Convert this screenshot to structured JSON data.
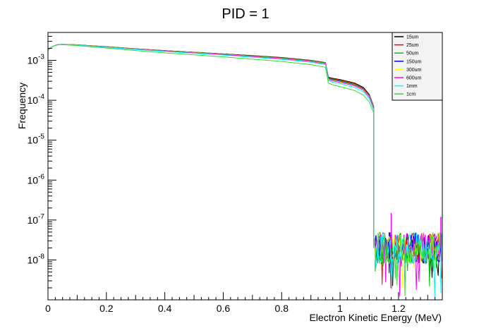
{
  "chart_data": {
    "type": "line",
    "title": "PID = 1",
    "xlabel": "Electron Kinetic Energy (MeV)",
    "ylabel": "Frequency",
    "xlim": [
      0,
      1.35
    ],
    "ylim": [
      1e-09,
      0.005
    ],
    "yscale": "log",
    "grid": false,
    "legend_position": "top-right",
    "x_ticks": [
      {
        "v": 0,
        "label": "0"
      },
      {
        "v": 0.2,
        "label": "0.2"
      },
      {
        "v": 0.4,
        "label": "0.4"
      },
      {
        "v": 0.6,
        "label": "0.6"
      },
      {
        "v": 0.8,
        "label": "0.8"
      },
      {
        "v": 1.0,
        "label": "1"
      },
      {
        "v": 1.2,
        "label": "1.2"
      }
    ],
    "y_ticks": [
      {
        "v": 1e-08,
        "base": "10",
        "exp": "-8"
      },
      {
        "v": 1e-07,
        "base": "10",
        "exp": "-7"
      },
      {
        "v": 1e-06,
        "base": "10",
        "exp": "-6"
      },
      {
        "v": 1e-05,
        "base": "10",
        "exp": "-5"
      },
      {
        "v": 0.0001,
        "base": "10",
        "exp": "-4"
      },
      {
        "v": 0.001,
        "base": "10",
        "exp": "-3"
      }
    ],
    "x": [
      0.0,
      0.01,
      0.02,
      0.03,
      0.04,
      0.05,
      0.07,
      0.1,
      0.15,
      0.2,
      0.3,
      0.4,
      0.5,
      0.6,
      0.7,
      0.8,
      0.9,
      0.95,
      0.96,
      0.97,
      1.0,
      1.05,
      1.08,
      1.1,
      1.115
    ],
    "series": [
      {
        "name": "15um",
        "color": "#000000",
        "values": [
          0.0018,
          0.0021,
          0.0023,
          0.00245,
          0.0025,
          0.00252,
          0.0025,
          0.00245,
          0.00232,
          0.0022,
          0.00195,
          0.00175,
          0.0016,
          0.00145,
          0.00132,
          0.00118,
          0.001,
          0.00088,
          0.00038,
          0.00036,
          0.00033,
          0.00027,
          0.00021,
          0.00014,
          7e-05
        ]
      },
      {
        "name": "25um",
        "color": "#ff0000",
        "values": [
          0.0018,
          0.0021,
          0.0023,
          0.00245,
          0.0025,
          0.00252,
          0.0025,
          0.00245,
          0.00232,
          0.0022,
          0.00195,
          0.00175,
          0.0016,
          0.00145,
          0.0013,
          0.00116,
          0.00099,
          0.00087,
          0.00037,
          0.00035,
          0.00032,
          0.00026,
          0.0002,
          0.000135,
          6.8e-05
        ]
      },
      {
        "name": "50um",
        "color": "#00cc00",
        "values": [
          0.0018,
          0.0021,
          0.0023,
          0.00245,
          0.0025,
          0.00252,
          0.0025,
          0.00245,
          0.00231,
          0.00219,
          0.00194,
          0.00174,
          0.00159,
          0.00144,
          0.00129,
          0.00115,
          0.00098,
          0.00086,
          0.00036,
          0.00034,
          0.00031,
          0.00025,
          0.000195,
          0.00013,
          6.6e-05
        ]
      },
      {
        "name": "150um",
        "color": "#0000ff",
        "values": [
          0.0018,
          0.0021,
          0.0023,
          0.00244,
          0.00249,
          0.0025,
          0.00248,
          0.00243,
          0.0023,
          0.00217,
          0.00192,
          0.00172,
          0.00157,
          0.00142,
          0.00127,
          0.00113,
          0.00096,
          0.00084,
          0.00035,
          0.00033,
          0.0003,
          0.00024,
          0.00019,
          0.000128,
          6.4e-05
        ]
      },
      {
        "name": "300um",
        "color": "#ffff00",
        "values": [
          0.0018,
          0.0021,
          0.0023,
          0.00244,
          0.00249,
          0.0025,
          0.00248,
          0.00242,
          0.00229,
          0.00216,
          0.00191,
          0.00171,
          0.00156,
          0.00141,
          0.00126,
          0.00112,
          0.00095,
          0.00083,
          0.00034,
          0.00032,
          0.00029,
          0.000235,
          0.000185,
          0.000125,
          6.3e-05
        ]
      },
      {
        "name": "600um",
        "color": "#ff00ff",
        "values": [
          0.0018,
          0.0021,
          0.0023,
          0.00243,
          0.00248,
          0.00249,
          0.00247,
          0.00241,
          0.00227,
          0.00214,
          0.00189,
          0.00169,
          0.00154,
          0.00139,
          0.00124,
          0.0011,
          0.00093,
          0.00081,
          0.00033,
          0.00031,
          0.00028,
          0.00023,
          0.00018,
          0.00012,
          6.1e-05
        ]
      },
      {
        "name": "1mm",
        "color": "#00ffff",
        "values": [
          0.0018,
          0.0021,
          0.0023,
          0.00243,
          0.00248,
          0.00249,
          0.00246,
          0.0024,
          0.00226,
          0.00212,
          0.00186,
          0.00166,
          0.0015,
          0.00135,
          0.0012,
          0.00106,
          0.0009,
          0.00078,
          0.00031,
          0.00029,
          0.00026,
          0.00021,
          0.000165,
          0.00011,
          5.7e-05
        ]
      },
      {
        "name": "1cm",
        "color": "#33dd33",
        "values": [
          0.0018,
          0.0021,
          0.0023,
          0.00242,
          0.00246,
          0.00246,
          0.00242,
          0.00234,
          0.00218,
          0.00203,
          0.00176,
          0.00154,
          0.00137,
          0.00122,
          0.00107,
          0.00094,
          0.00078,
          0.00067,
          0.00027,
          0.00025,
          0.00022,
          0.000175,
          0.000135,
          9e-05,
          4.8e-05
        ]
      }
    ],
    "tail": {
      "x_start": 1.12,
      "x_end": 1.35,
      "typical": 2e-08,
      "min": 2e-09,
      "max": 5e-08,
      "spikes": [
        {
          "x": 1.175,
          "value": 1.5e-07
        },
        {
          "x": 1.345,
          "value": 1.2e-07
        }
      ]
    }
  }
}
